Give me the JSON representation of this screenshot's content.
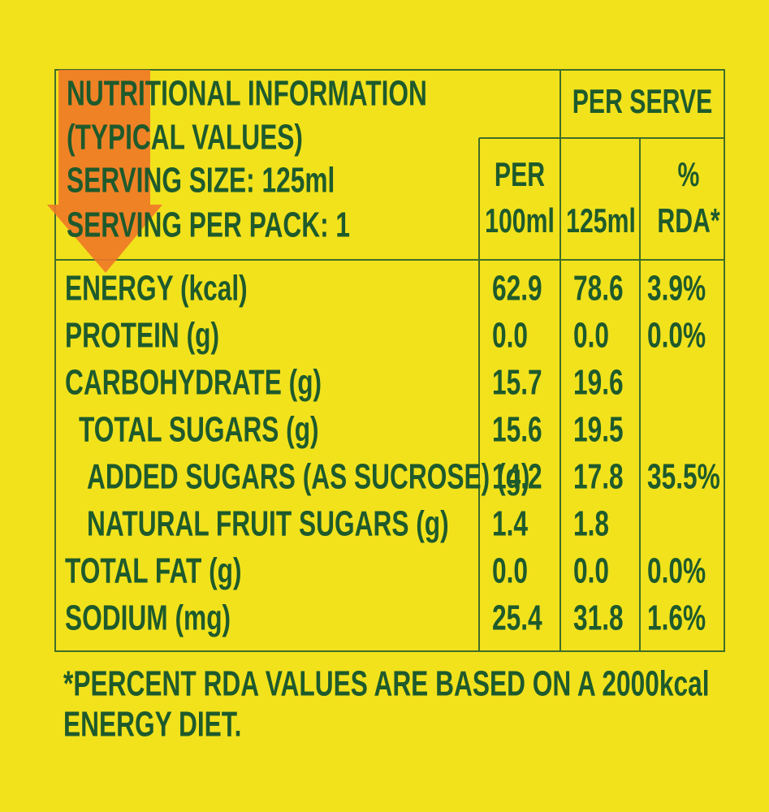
{
  "header": {
    "lines": [
      "NUTRITIONAL INFORMATION",
      "(TYPICAL VALUES)",
      "SERVING SIZE: 125ml",
      "SERVING PER PACK: 1"
    ]
  },
  "per_serve": "PER SERVE",
  "columns": [
    [
      "PER",
      "100ml"
    ],
    [
      "125ml"
    ],
    [
      "%",
      "RDA*"
    ]
  ],
  "rows": [
    [
      "ENERGY (kcal)",
      "62.9",
      "78.6",
      "3.9%"
    ],
    [
      "PROTEIN (g)",
      "0.0",
      "0.0",
      "0.0%"
    ],
    [
      "CARBOHYDRATE (g)",
      "15.7",
      "19.6"
    ],
    [
      "TOTAL SUGARS (g)",
      "15.6",
      "19.5"
    ],
    [
      "ADDED SUGARS (AS SUCROSE) (g)",
      "14.2",
      "17.8",
      "35.5%"
    ],
    [
      "NATURAL FRUIT SUGARS (g)",
      "1.4",
      "1.8"
    ],
    [
      "TOTAL FAT (g)",
      "0.0",
      "0.0",
      "0.0%"
    ],
    [
      "SODIUM (mg)",
      "25.4",
      "31.8",
      "1.6%"
    ]
  ],
  "footnote": [
    "*PERCENT RDA VALUES ARE BASED ON A 2000kcal",
    "ENERGY DIET."
  ]
}
